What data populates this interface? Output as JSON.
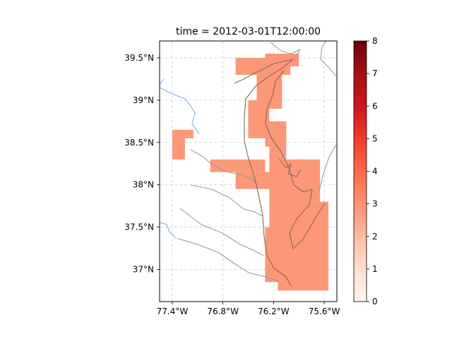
{
  "chart_data": {
    "type": "heatmap",
    "title": "time = 2012-03-01T12:00:00",
    "xlabel": "",
    "ylabel": "",
    "xlim": [
      -77.55,
      -75.45
    ],
    "ylim": [
      36.62,
      39.7
    ],
    "x_ticks": [
      {
        "value": -77.4,
        "label": "77.4°W"
      },
      {
        "value": -76.8,
        "label": "76.8°W"
      },
      {
        "value": -76.2,
        "label": "76.2°W"
      },
      {
        "value": -75.6,
        "label": "75.6°W"
      }
    ],
    "y_ticks": [
      {
        "value": 37.0,
        "label": "37°N"
      },
      {
        "value": 37.5,
        "label": "37.5°N"
      },
      {
        "value": 38.0,
        "label": "38°N"
      },
      {
        "value": 38.5,
        "label": "38.5°N"
      },
      {
        "value": 39.0,
        "label": "39°N"
      },
      {
        "value": 39.5,
        "label": "39.5°N"
      }
    ],
    "grid": true,
    "colorbar": {
      "vmin": 0,
      "vmax": 8,
      "ticks": [
        "0",
        "1",
        "2",
        "3",
        "4",
        "5",
        "6",
        "7",
        "8"
      ],
      "colors": [
        "#fff5f0",
        "#fee0d2",
        "#fcbba1",
        "#fc9272",
        "#fb6a4a",
        "#ef3b2c",
        "#cb181d",
        "#a50f15",
        "#67000d"
      ]
    },
    "field_value": 2.8,
    "field_color": "#fc9878",
    "field_regions": [
      {
        "lon": [
          -76.65,
          -76.0
        ],
        "lat": [
          39.3,
          39.5
        ]
      },
      {
        "lon": [
          -76.3,
          -75.9
        ],
        "lat": [
          39.4,
          39.55
        ]
      },
      {
        "lon": [
          -76.4,
          -76.1
        ],
        "lat": [
          38.9,
          39.3
        ]
      },
      {
        "lon": [
          -76.5,
          -76.25
        ],
        "lat": [
          38.55,
          39.0
        ]
      },
      {
        "lon": [
          -76.3,
          -76.05
        ],
        "lat": [
          38.45,
          38.75
        ]
      },
      {
        "lon": [
          -76.25,
          -76.05
        ],
        "lat": [
          38.1,
          38.5
        ]
      },
      {
        "lon": [
          -76.25,
          -75.85
        ],
        "lat": [
          37.5,
          38.3
        ]
      },
      {
        "lon": [
          -76.3,
          -75.8
        ],
        "lat": [
          36.85,
          37.5
        ]
      },
      {
        "lon": [
          -75.9,
          -75.65
        ],
        "lat": [
          37.8,
          38.3
        ]
      },
      {
        "lon": [
          -75.95,
          -75.55
        ],
        "lat": [
          37.3,
          37.8
        ]
      },
      {
        "lon": [
          -76.15,
          -75.55
        ],
        "lat": [
          36.75,
          37.3
        ]
      },
      {
        "lon": [
          -76.95,
          -76.3
        ],
        "lat": [
          38.15,
          38.3
        ]
      },
      {
        "lon": [
          -76.65,
          -76.25
        ],
        "lat": [
          37.95,
          38.15
        ]
      },
      {
        "lon": [
          -77.4,
          -77.25
        ],
        "lat": [
          38.3,
          38.65
        ]
      },
      {
        "lon": [
          -77.25,
          -77.15
        ],
        "lat": [
          38.55,
          38.65
        ]
      }
    ]
  }
}
